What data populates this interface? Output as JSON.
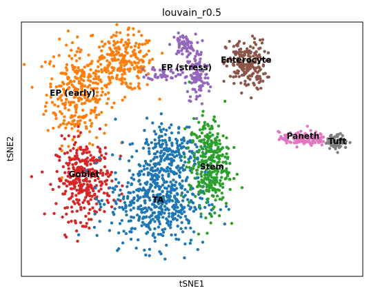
{
  "chart_data": {
    "type": "scatter",
    "title": "louvain_r0.5",
    "xlabel": "tSNE1",
    "ylabel": "tSNE2",
    "xlim": [
      -60,
      60
    ],
    "ylim": [
      -50,
      50
    ],
    "grid": false,
    "legend": "on data",
    "series": [
      {
        "name": "EP (early)",
        "color": "#ff7f0e",
        "label_at": [
          -42,
          22
        ],
        "spread": [
          10,
          13
        ],
        "count": 520,
        "blobs": [
          [
            -40,
            22,
            8,
            14,
            0.55
          ],
          [
            -24,
            34,
            8,
            8,
            0.45
          ]
        ]
      },
      {
        "name": "EP (stress)",
        "color": "#9467bd",
        "label_at": [
          -2,
          32
        ],
        "spread": [
          6,
          14
        ],
        "count": 210,
        "blobs": [
          [
            -3,
            41,
            3,
            3,
            0.3
          ],
          [
            2,
            28,
            3,
            8,
            0.5
          ],
          [
            -10,
            30,
            4,
            2,
            0.2
          ]
        ]
      },
      {
        "name": "Enterocyte",
        "color": "#8c564b",
        "label_at": [
          19,
          35
        ],
        "spread": [
          6,
          8
        ],
        "count": 200,
        "blobs": [
          [
            19,
            33,
            5,
            7,
            1.0
          ]
        ]
      },
      {
        "name": "Goblet",
        "color": "#d62728",
        "label_at": [
          -38,
          -10
        ],
        "spread": [
          8,
          12
        ],
        "count": 330,
        "blobs": [
          [
            -38,
            -12,
            7,
            11,
            1.0
          ]
        ]
      },
      {
        "name": "TA",
        "color": "#1f77b4",
        "label_at": [
          -12,
          -20
        ],
        "spread": [
          14,
          16
        ],
        "count": 700,
        "blobs": [
          [
            -12,
            -20,
            12,
            13,
            0.75
          ],
          [
            -8,
            0,
            8,
            8,
            0.25
          ]
        ]
      },
      {
        "name": "Stem",
        "color": "#2ca02c",
        "label_at": [
          7,
          -7
        ],
        "spread": [
          6,
          16
        ],
        "count": 320,
        "blobs": [
          [
            6,
            -6,
            5,
            13,
            1.0
          ]
        ]
      },
      {
        "name": "Paneth",
        "color": "#e377c2",
        "label_at": [
          39,
          5
        ],
        "spread": [
          10,
          3
        ],
        "count": 120,
        "blobs": [
          [
            39,
            4,
            6,
            2,
            1.0
          ]
        ]
      },
      {
        "name": "Tuft",
        "color": "#7f7f7f",
        "label_at": [
          51,
          3
        ],
        "spread": [
          3,
          3
        ],
        "count": 80,
        "blobs": [
          [
            51,
            3,
            2.5,
            2,
            1.0
          ]
        ]
      }
    ]
  }
}
